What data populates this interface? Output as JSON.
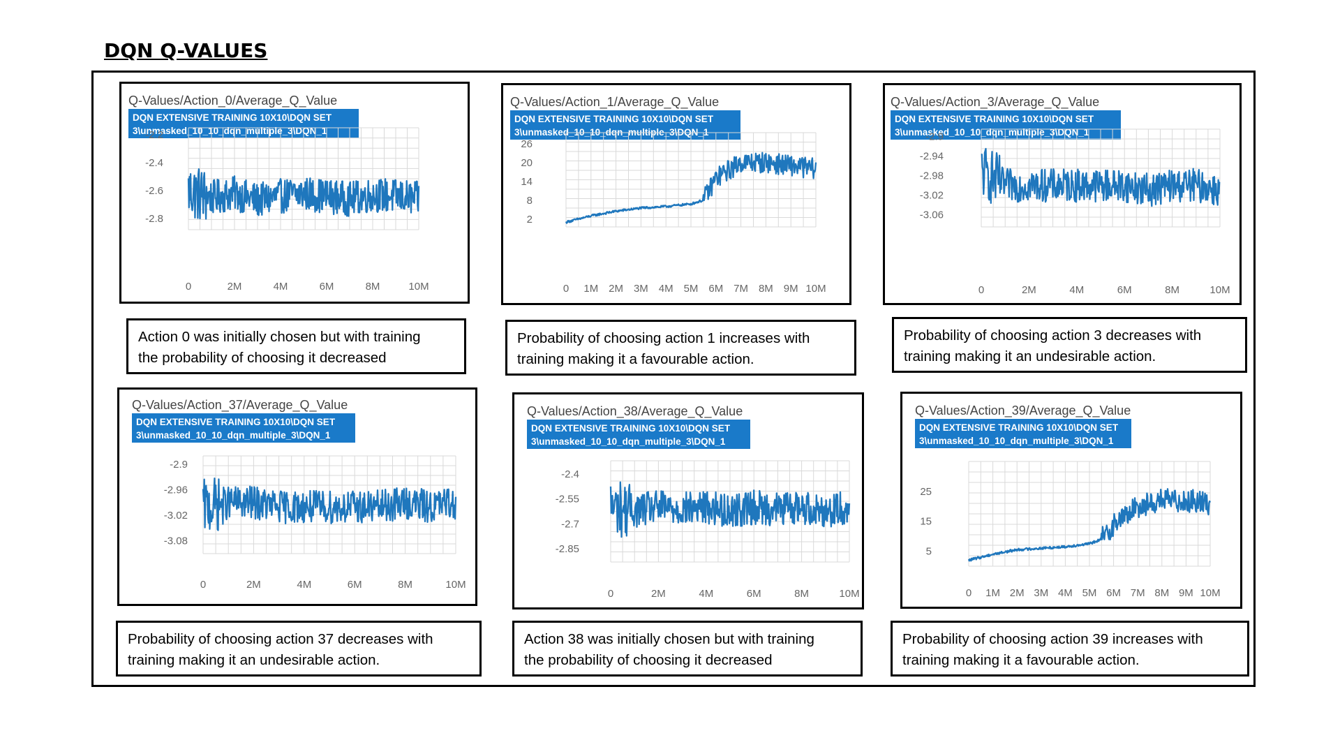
{
  "heading": "DQN Q-VALUES",
  "colors": {
    "line": "#1f77bd",
    "label_bg": "#1a7ac9",
    "grid": "#d9d9d9"
  },
  "chart_data": [
    {
      "type": "line",
      "title": "Q-Values/Action_0/Average_Q_Value",
      "run_label_lines": [
        "DQN EXTENSIVE TRAINING 10X10\\DQN SET",
        "3\\unmasked_10_10_dqn_multiple_3\\DQN_1"
      ],
      "x_ticks": [
        "0",
        "2M",
        "4M",
        "6M",
        "8M",
        "10M"
      ],
      "y_ticks": [
        "-2.2",
        "-2.4",
        "-2.6",
        "-2.8"
      ],
      "xlim": [
        0,
        10000000
      ],
      "ylim": [
        -2.88,
        -2.15
      ],
      "grid": true,
      "series": [
        {
          "x": [
            0,
            1000000,
            2000000,
            3000000,
            4000000,
            5000000,
            6000000,
            7000000,
            8000000,
            9000000,
            10000000
          ],
          "y": [
            -2.6,
            -2.65,
            -2.62,
            -2.67,
            -2.64,
            -2.62,
            -2.64,
            -2.66,
            -2.63,
            -2.64,
            -2.66
          ]
        }
      ]
    },
    {
      "type": "line",
      "title": "Q-Values/Action_1/Average_Q_Value",
      "run_label_lines": [
        "DQN EXTENSIVE TRAINING 10X10\\DQN SET",
        "3\\unmasked_10_10_dqn_multiple_3\\DQN_1"
      ],
      "x_ticks": [
        "0",
        "1M",
        "2M",
        "3M",
        "4M",
        "5M",
        "6M",
        "7M",
        "8M",
        "9M",
        "10M"
      ],
      "y_ticks": [
        "26",
        "20",
        "14",
        "8",
        "2"
      ],
      "xlim": [
        0,
        10000000
      ],
      "ylim": [
        -0.5,
        29.5
      ],
      "grid": true,
      "series": [
        {
          "x": [
            0,
            1000000,
            2000000,
            3000000,
            4000000,
            5000000,
            5500000,
            6000000,
            7000000,
            8000000,
            9000000,
            10000000
          ],
          "y": [
            1,
            3,
            4.5,
            5.5,
            6,
            6.8,
            8,
            15,
            20,
            20,
            19,
            18
          ]
        }
      ]
    },
    {
      "type": "line",
      "title": "Q-Values/Action_3/Average_Q_Value",
      "run_label_lines": [
        "DQN EXTENSIVE TRAINING 10X10\\DQN SET",
        "3\\unmasked_10_10_dqn_multiple_3\\DQN_1"
      ],
      "x_ticks": [
        "0",
        "2M",
        "4M",
        "6M",
        "8M",
        "10M"
      ],
      "y_ticks": [
        "-2.9",
        "-2.94",
        "-2.98",
        "-3.02",
        "-3.06"
      ],
      "xlim": [
        0,
        10000000
      ],
      "ylim": [
        -3.085,
        -2.885
      ],
      "grid": true,
      "series": [
        {
          "x": [
            0,
            1000000,
            2000000,
            3000000,
            4000000,
            5000000,
            6000000,
            7000000,
            8000000,
            9000000,
            10000000
          ],
          "y": [
            -2.97,
            -3.0,
            -3.0,
            -3.0,
            -3.0,
            -3.0,
            -3.0,
            -3.01,
            -3.0,
            -3.0,
            -3.01
          ]
        }
      ]
    },
    {
      "type": "line",
      "title": "Q-Values/Action_37/Average_Q_Value",
      "run_label_lines": [
        "DQN EXTENSIVE TRAINING 10X10\\DQN SET",
        "3\\unmasked_10_10_dqn_multiple_3\\DQN_1"
      ],
      "x_ticks": [
        "0",
        "2M",
        "4M",
        "6M",
        "8M",
        "10M"
      ],
      "y_ticks": [
        "-2.9",
        "-2.96",
        "-3.02",
        "-3.08"
      ],
      "xlim": [
        0,
        10000000
      ],
      "ylim": [
        -3.11,
        -2.88
      ],
      "grid": true,
      "series": [
        {
          "x": [
            0,
            1000000,
            2000000,
            3000000,
            4000000,
            5000000,
            6000000,
            7000000,
            8000000,
            9000000,
            10000000
          ],
          "y": [
            -3.0,
            -2.99,
            -2.99,
            -3.0,
            -3.0,
            -3.0,
            -3.0,
            -3.0,
            -2.99,
            -3.0,
            -2.99
          ]
        }
      ]
    },
    {
      "type": "line",
      "title": "Q-Values/Action_38/Average_Q_Value",
      "run_label_lines": [
        "DQN EXTENSIVE TRAINING 10X10\\DQN SET",
        "3\\unmasked_10_10_dqn_multiple_3\\DQN_1"
      ],
      "x_ticks": [
        "0",
        "2M",
        "4M",
        "6M",
        "8M",
        "10M"
      ],
      "y_ticks": [
        "-2.4",
        "-2.55",
        "-2.7",
        "-2.85"
      ],
      "xlim": [
        0,
        10000000
      ],
      "ylim": [
        -2.93,
        -2.32
      ],
      "grid": true,
      "series": [
        {
          "x": [
            0,
            1000000,
            2000000,
            3000000,
            4000000,
            5000000,
            6000000,
            7000000,
            8000000,
            9000000,
            10000000
          ],
          "y": [
            -2.6,
            -2.62,
            -2.6,
            -2.61,
            -2.6,
            -2.62,
            -2.6,
            -2.61,
            -2.6,
            -2.62,
            -2.6
          ]
        }
      ]
    },
    {
      "type": "line",
      "title": "Q-Values/Action_39/Average_Q_Value",
      "run_label_lines": [
        "DQN EXTENSIVE TRAINING 10X10\\DQN SET",
        "3\\unmasked_10_10_dqn_multiple_3\\DQN_1"
      ],
      "x_ticks": [
        "0",
        "1M",
        "2M",
        "3M",
        "4M",
        "5M",
        "6M",
        "7M",
        "8M",
        "9M",
        "10M"
      ],
      "y_ticks": [
        "25",
        "15",
        "5"
      ],
      "xlim": [
        0,
        10000000
      ],
      "ylim": [
        0,
        35
      ],
      "grid": true,
      "series": [
        {
          "x": [
            0,
            1000000,
            2000000,
            3000000,
            4000000,
            5000000,
            5500000,
            6000000,
            7000000,
            8000000,
            9000000,
            10000000
          ],
          "y": [
            2,
            4,
            5.5,
            6,
            6.5,
            7.5,
            9,
            14,
            20,
            22,
            22,
            21
          ]
        }
      ]
    }
  ],
  "captions": [
    "Action 0 was initially chosen but with training\n the probability of choosing it decreased",
    "Probability of choosing action 1 increases with\ntraining making it a favourable action.",
    "Probability of choosing action 3 decreases with\ntraining making it an undesirable action.",
    "Probability of choosing action 37 decreases with\ntraining making it an undesirable action.",
    "Action 38 was initially chosen but with training\n the probability of choosing it decreased",
    "Probability of choosing action 39 increases with\ntraining making it a favourable action."
  ]
}
